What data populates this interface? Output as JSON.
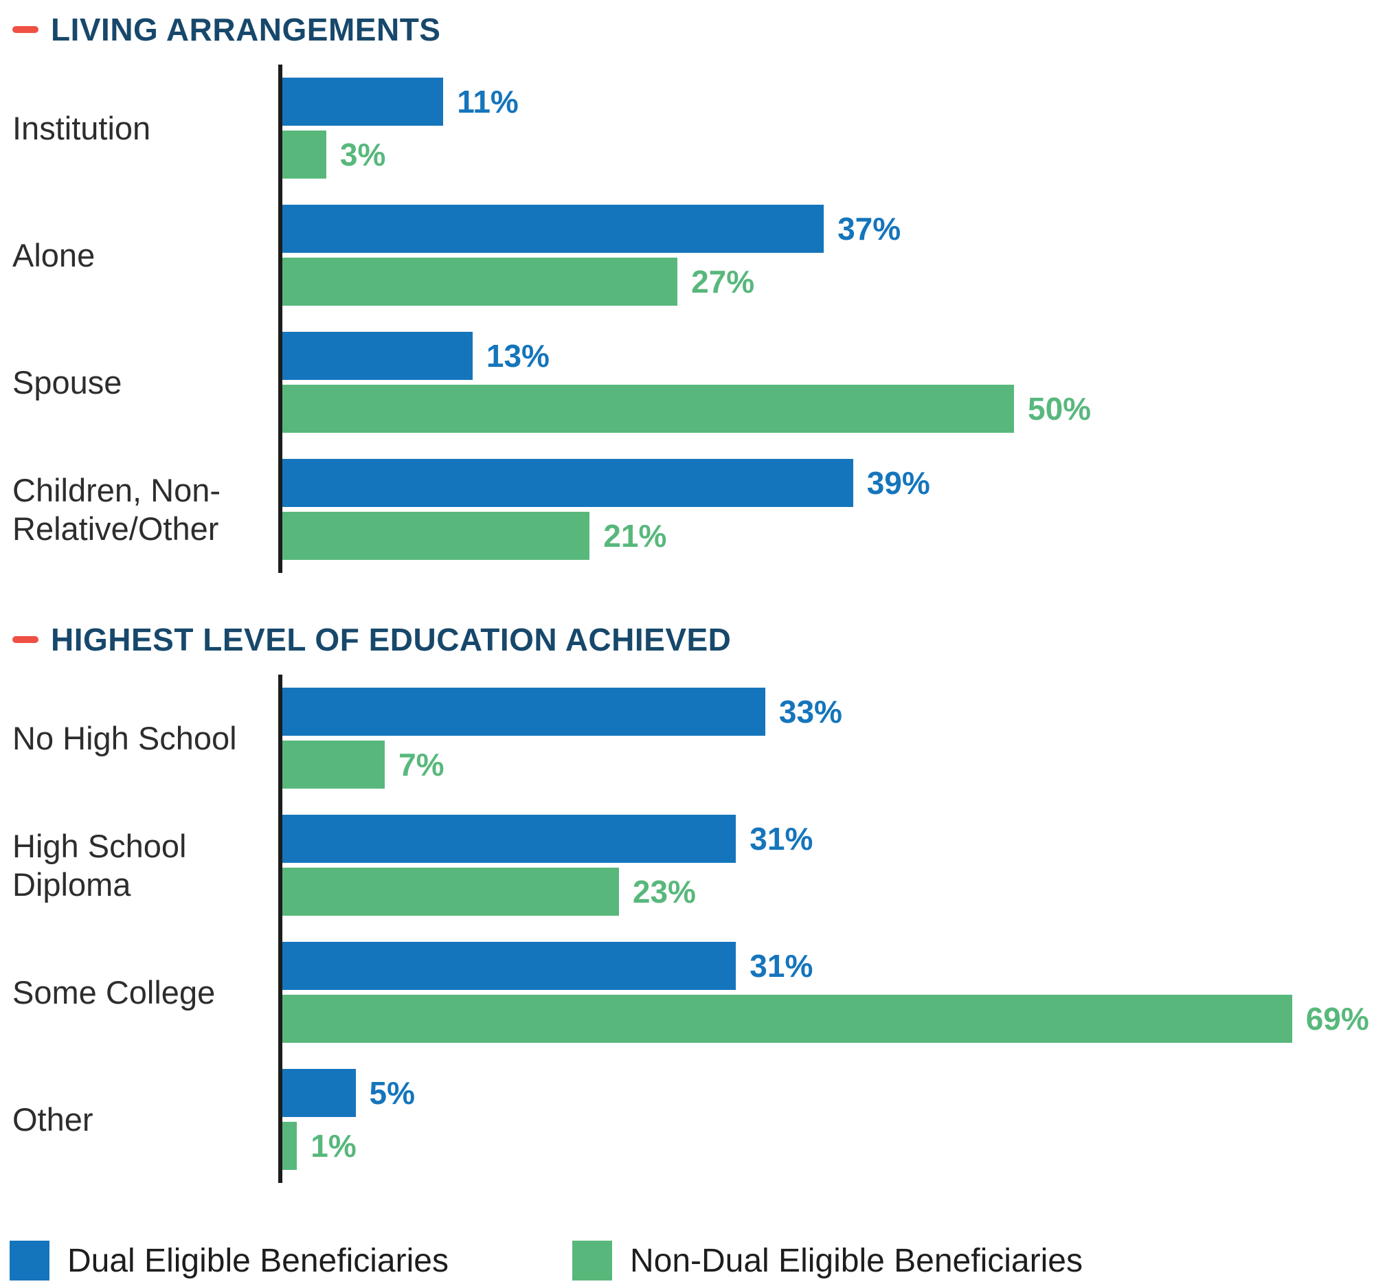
{
  "accent_colors": {
    "heading": "#17486b",
    "heading_dash": "#ef5044",
    "dual": "#1575bc",
    "non_dual": "#58b87c",
    "axis": "#1c1c1c"
  },
  "chart_data": [
    {
      "type": "bar",
      "orientation": "horizontal",
      "title": "LIVING ARRANGEMENTS",
      "categories": [
        "Institution",
        "Alone",
        "Spouse",
        "Children, Non-Relative/Other"
      ],
      "series": [
        {
          "name": "Dual Eligible Beneficiaries",
          "color": "#1575bc",
          "values": [
            11,
            37,
            13,
            39
          ]
        },
        {
          "name": "Non-Dual Eligible Beneficiaries",
          "color": "#58b87c",
          "values": [
            3,
            27,
            50,
            21
          ]
        }
      ],
      "value_suffix": "%",
      "xlim": [
        0,
        75
      ],
      "grid": false,
      "data_labels": "outside-end"
    },
    {
      "type": "bar",
      "orientation": "horizontal",
      "title": "HIGHEST LEVEL OF EDUCATION ACHIEVED",
      "categories": [
        "No High School",
        "High School Diploma",
        "Some College",
        "Other"
      ],
      "series": [
        {
          "name": "Dual Eligible Beneficiaries",
          "color": "#1575bc",
          "values": [
            33,
            31,
            31,
            5
          ]
        },
        {
          "name": "Non-Dual Eligible Beneficiaries",
          "color": "#58b87c",
          "values": [
            7,
            23,
            69,
            1
          ]
        }
      ],
      "value_suffix": "%",
      "xlim": [
        0,
        75
      ],
      "grid": false,
      "data_labels": "outside-end"
    }
  ],
  "legend": {
    "position": "bottom-left",
    "items": [
      {
        "label": "Dual Eligible Beneficiaries",
        "color": "#1575bc"
      },
      {
        "label": "Non-Dual Eligible Beneficiaries",
        "color": "#58b87c"
      }
    ]
  }
}
